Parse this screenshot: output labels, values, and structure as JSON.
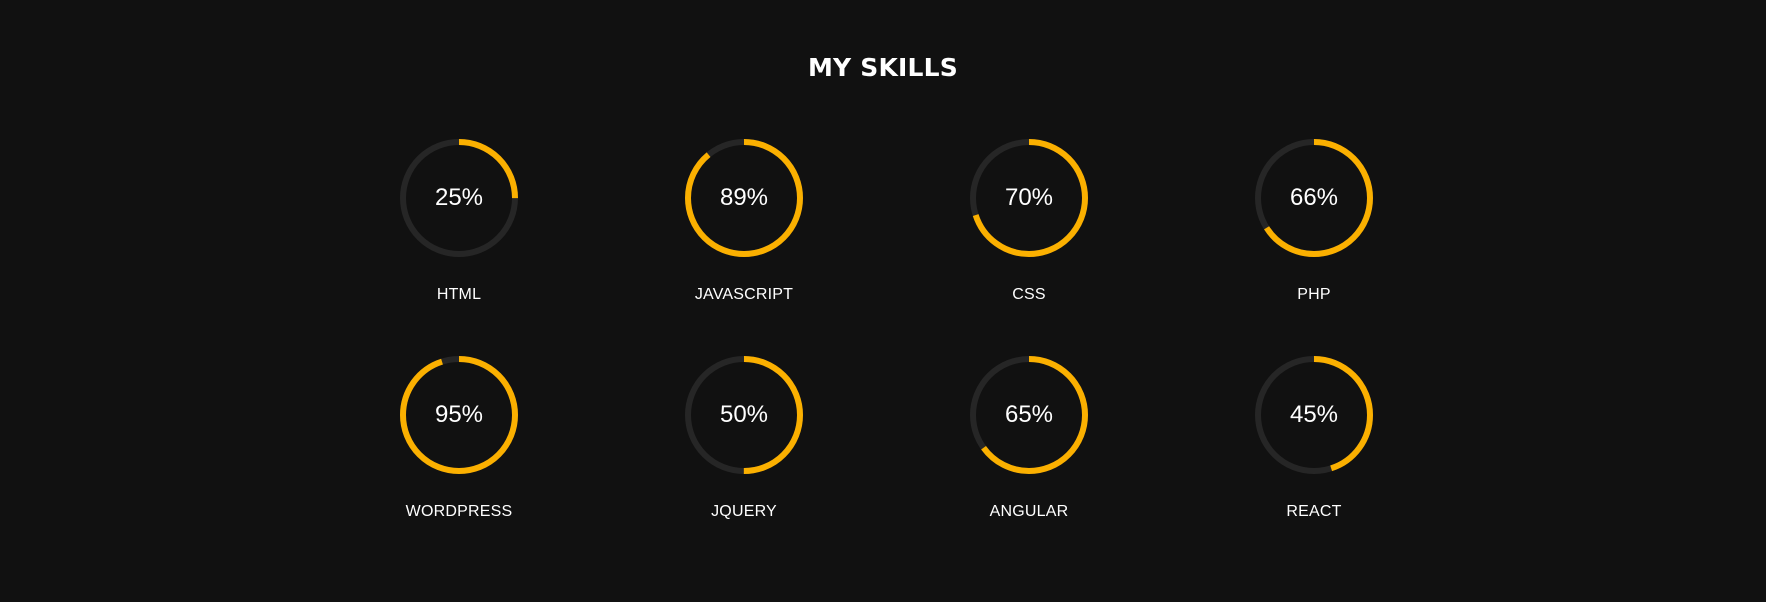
{
  "section": {
    "title": "MY SKILLS"
  },
  "colors": {
    "background": "#111111",
    "track": "#262626",
    "accent": "#fbb000",
    "text": "#ffffff"
  },
  "skills": [
    {
      "name": "HTML",
      "percent": 25,
      "percent_label": "25%"
    },
    {
      "name": "JAVASCRIPT",
      "percent": 89,
      "percent_label": "89%"
    },
    {
      "name": "CSS",
      "percent": 70,
      "percent_label": "70%"
    },
    {
      "name": "PHP",
      "percent": 66,
      "percent_label": "66%"
    },
    {
      "name": "WORDPRESS",
      "percent": 95,
      "percent_label": "95%"
    },
    {
      "name": "JQUERY",
      "percent": 50,
      "percent_label": "50%"
    },
    {
      "name": "ANGULAR",
      "percent": 65,
      "percent_label": "65%"
    },
    {
      "name": "REACT",
      "percent": 45,
      "percent_label": "45%"
    }
  ]
}
